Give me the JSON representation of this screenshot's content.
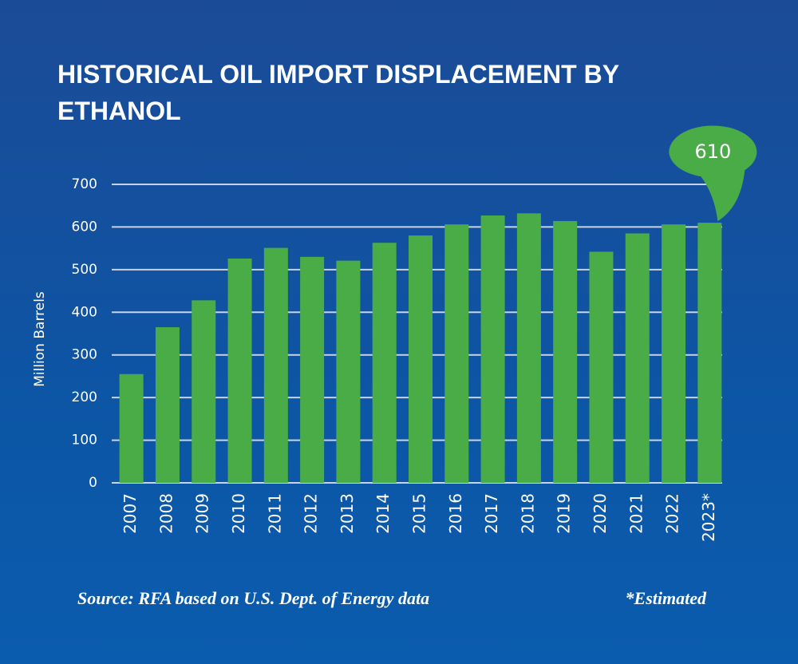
{
  "chart_data": {
    "type": "bar",
    "title": "HISTORICAL OIL IMPORT DISPLACEMENT BY ETHANOL",
    "y_label": "Million Barrels",
    "categories": [
      "2007",
      "2008",
      "2009",
      "2010",
      "2011",
      "2012",
      "2013",
      "2014",
      "2015",
      "2016",
      "2017",
      "2018",
      "2019",
      "2020",
      "2021",
      "2022",
      "2023*"
    ],
    "values": [
      255,
      365,
      428,
      526,
      551,
      530,
      521,
      563,
      580,
      606,
      627,
      632,
      614,
      542,
      585,
      606,
      610
    ],
    "color": "#4aac47",
    "ylim": [
      0,
      700
    ],
    "yticks": [
      0,
      100,
      200,
      300,
      400,
      500,
      600,
      700
    ],
    "grid": true,
    "source": "Source: RFA based on U.S. Dept. of Energy data",
    "note": "*Estimated"
  }
}
